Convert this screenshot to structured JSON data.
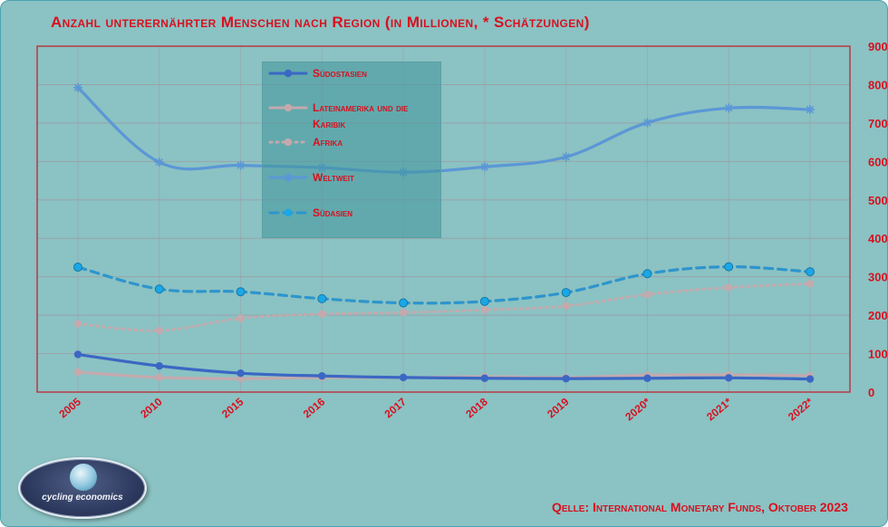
{
  "title": "Anzahl unterernährter Menschen nach Region (in Millionen, * Schätzungen)",
  "source": "Qelle: International Monetary Funds, Oktober 2023",
  "logo_text": "cycling economics",
  "chart_data": {
    "type": "line",
    "categories": [
      "2005",
      "2010",
      "2015",
      "2016",
      "2017",
      "2018",
      "2019",
      "2020*",
      "2021*",
      "2022*"
    ],
    "y_axis": {
      "side": "right",
      "min": 0,
      "max": 900,
      "ticks": [
        "0",
        "100",
        "200",
        "300",
        "400",
        "500",
        "600",
        "700",
        "800",
        "900"
      ]
    },
    "grid": true,
    "legend_position": "top-center",
    "series": [
      {
        "name": "Südostasien",
        "color": "#3b67c4",
        "style": "solid",
        "marker": "circle",
        "values": [
          98,
          68,
          49,
          42,
          38,
          36,
          35,
          36,
          37,
          34
        ]
      },
      {
        "name": "Lateinamerika und die Karibik",
        "color": "#c4a9ad",
        "style": "solid",
        "marker": "circle",
        "values": [
          52,
          38,
          35,
          38,
          38,
          40,
          38,
          44,
          45,
          43
        ]
      },
      {
        "name": "Afrika",
        "color": "#c4a9ad",
        "style": "dotted",
        "marker": "circle",
        "values": [
          178,
          160,
          192,
          203,
          207,
          214,
          224,
          254,
          272,
          282
        ]
      },
      {
        "name": "Weltweit",
        "color": "#5b97d6",
        "style": "solid",
        "marker": "star",
        "values": [
          792,
          598,
          590,
          584,
          572,
          586,
          612,
          701,
          739,
          735
        ]
      },
      {
        "name": "Südasien",
        "color": "#2e95cc",
        "style": "dashed",
        "marker": "dot",
        "values": [
          325,
          268,
          261,
          243,
          232,
          236,
          259,
          308,
          326,
          313
        ]
      }
    ]
  },
  "colors": {
    "axis": "#d8101f",
    "plot_border": "#c01a26",
    "background": "#8bc2c3"
  }
}
